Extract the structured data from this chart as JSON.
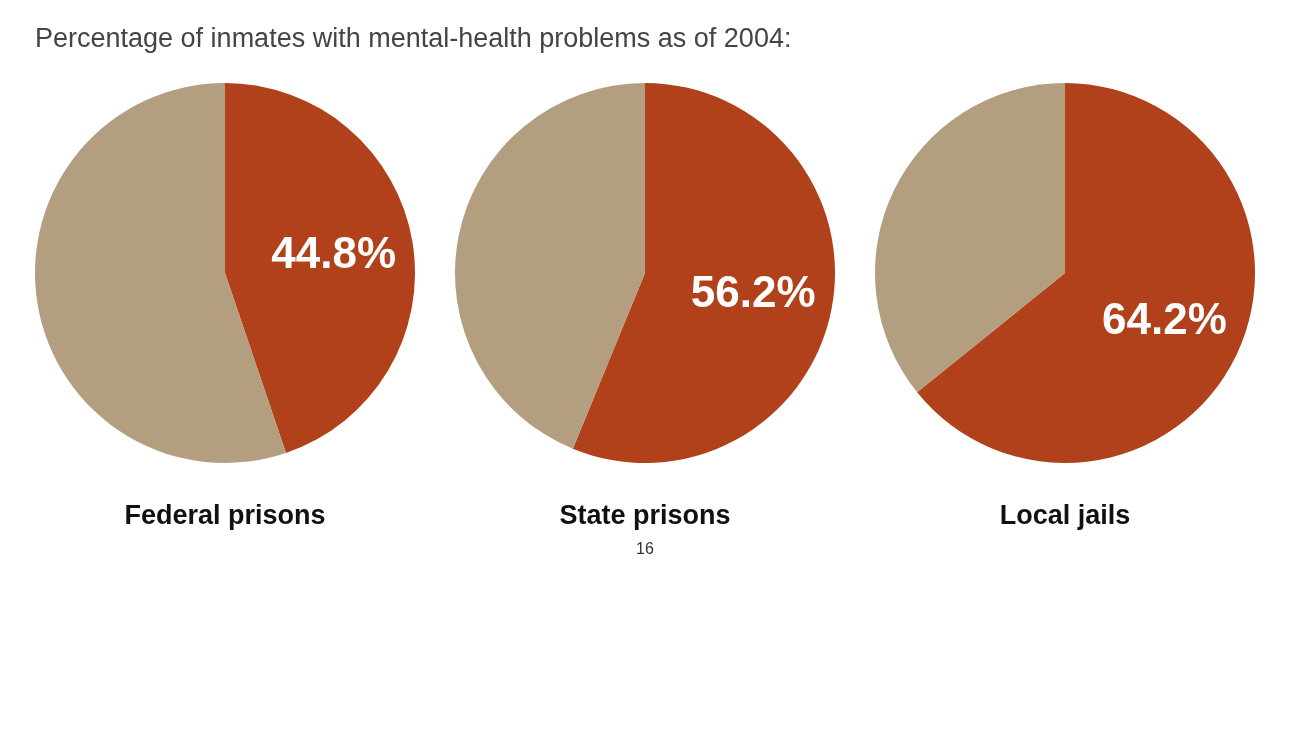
{
  "chart_data": [
    {
      "type": "pie",
      "title": "Percentage of inmates with mental-health problems as of 2004:",
      "xlabel": "Federal prisons",
      "categories": [
        null,
        null
      ],
      "values": [
        44.8,
        55.2
      ],
      "colors": [
        "#b0411a",
        "#b39e80"
      ],
      "value_labels": [
        "44.8%",
        null
      ]
    },
    {
      "type": "pie",
      "xlabel": "State prisons",
      "categories": [
        null,
        null
      ],
      "values": [
        56.2,
        43.8
      ],
      "colors": [
        "#b0411a",
        "#b39e80"
      ],
      "value_labels": [
        "56.2%",
        null
      ],
      "annotations": [
        "16"
      ]
    },
    {
      "type": "pie",
      "xlabel": "Local jails",
      "categories": [
        null,
        null
      ],
      "values": [
        64.2,
        35.8
      ],
      "colors": [
        "#b0411a",
        "#b39e80"
      ],
      "value_labels": [
        "64.2%",
        null
      ]
    }
  ]
}
